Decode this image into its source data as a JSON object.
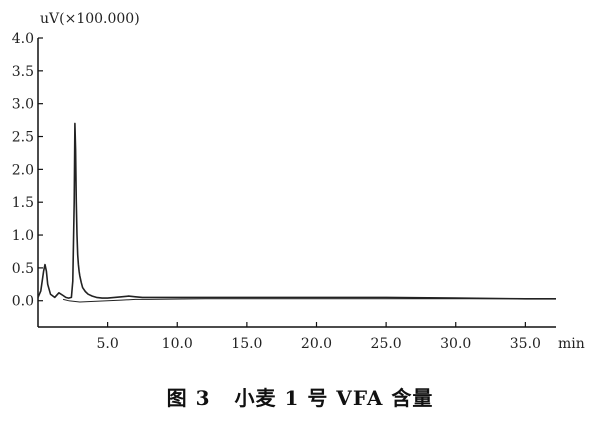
{
  "chart_data": {
    "type": "line",
    "title": "",
    "ylabel": "uV(×100.000)",
    "xlabel": "min",
    "xlim": [
      0,
      37.2
    ],
    "ylim": [
      -0.4,
      4.0
    ],
    "xticks": [
      5.0,
      10.0,
      15.0,
      20.0,
      25.0,
      30.0,
      35.0
    ],
    "xtick_labels": [
      "5.0",
      "10.0",
      "15.0",
      "20.0",
      "25.0",
      "30.0",
      "35.0"
    ],
    "yticks": [
      0.0,
      0.5,
      1.0,
      1.5,
      2.0,
      2.5,
      3.0,
      3.5,
      4.0
    ],
    "ytick_labels": [
      "0.0",
      "0.5",
      "1.0",
      "1.5",
      "2.0",
      "2.5",
      "3.0",
      "3.5",
      "4.0"
    ],
    "grid": false,
    "series": [
      {
        "x": [
          0.0,
          0.2,
          0.4,
          0.5,
          0.6,
          0.7,
          0.9,
          1.2,
          1.5,
          1.8,
          2.0,
          2.2,
          2.4,
          2.5,
          2.55,
          2.6,
          2.65,
          2.7,
          2.75,
          2.8,
          2.85,
          2.9,
          2.95,
          3.0,
          3.1,
          3.2,
          3.4,
          3.6,
          3.9,
          4.2,
          4.6,
          5.0,
          5.5,
          6.0,
          6.5,
          7.0,
          7.5,
          8.0,
          10.0,
          15.0,
          20.0,
          25.0,
          30.0,
          35.0,
          37.2
        ],
        "y": [
          0.05,
          0.15,
          0.45,
          0.55,
          0.45,
          0.25,
          0.1,
          0.05,
          0.12,
          0.08,
          0.05,
          0.04,
          0.05,
          0.3,
          0.9,
          1.5,
          2.7,
          2.3,
          1.5,
          1.0,
          0.7,
          0.55,
          0.45,
          0.38,
          0.28,
          0.2,
          0.14,
          0.1,
          0.07,
          0.05,
          0.04,
          0.04,
          0.05,
          0.06,
          0.07,
          0.06,
          0.05,
          0.05,
          0.05,
          0.05,
          0.05,
          0.05,
          0.04,
          0.03,
          0.03
        ]
      },
      {
        "x": [
          1.8,
          2.2,
          3.0,
          4.0,
          5.0,
          6.0,
          7.0,
          8.0,
          12.0,
          20.0,
          30.0,
          37.2
        ],
        "y": [
          0.02,
          0.0,
          -0.02,
          -0.01,
          0.0,
          0.01,
          0.02,
          0.02,
          0.03,
          0.03,
          0.03,
          0.03
        ]
      }
    ]
  },
  "caption": {
    "figure_number": "图 3",
    "text": "小麦 1 号 VFA 含量"
  }
}
